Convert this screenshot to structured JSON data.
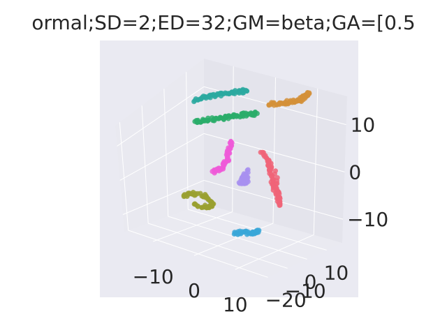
{
  "chart_data": {
    "type": "scatter",
    "title": "ormal;SD=2;ED=32;GM=beta;GA=[0.5",
    "projection": "3d",
    "grid": true,
    "xlim": [
      -17,
      17
    ],
    "ylim": [
      -22,
      18
    ],
    "zlim": [
      -15,
      16
    ],
    "x_ticks": [
      {
        "value": -10,
        "label": "−10"
      },
      {
        "value": 0,
        "label": "0"
      },
      {
        "value": 10,
        "label": "10"
      }
    ],
    "y_ticks": [
      {
        "value": -20,
        "label": "−20"
      },
      {
        "value": -10,
        "label": "−10"
      },
      {
        "value": 0,
        "label": "0"
      },
      {
        "value": 10,
        "label": "10"
      }
    ],
    "z_ticks": [
      {
        "value": -10,
        "label": "−10"
      },
      {
        "value": 0,
        "label": "0"
      },
      {
        "value": 10,
        "label": "10"
      }
    ],
    "colors": {
      "pane_back": "#e4e4ec",
      "pane_side": "#e9e9f0",
      "pane_floor": "#eaeaf1",
      "background": "#eaeaf2",
      "grid": "#ffffff",
      "text": "#262626"
    },
    "series": [
      {
        "color": "#2ca9a0",
        "points": [
          [
            -14,
            8,
            11
          ],
          [
            -12,
            9,
            12
          ],
          [
            -10,
            10,
            12.5
          ],
          [
            -8,
            11,
            13
          ],
          [
            -6,
            12,
            13.5
          ],
          [
            -4,
            12.5,
            14
          ]
        ]
      },
      {
        "color": "#2aad6a",
        "points": [
          [
            -12,
            4,
            8
          ],
          [
            -10,
            5,
            8.5
          ],
          [
            -8,
            6,
            9
          ],
          [
            -6,
            7,
            9.5
          ],
          [
            -4,
            8,
            10
          ],
          [
            -2,
            9,
            10.5
          ],
          [
            0,
            9.5,
            11
          ]
        ]
      },
      {
        "color": "#d4913a",
        "points": [
          [
            1,
            13,
            12
          ],
          [
            3,
            14,
            12.5
          ],
          [
            5,
            15,
            13
          ],
          [
            7,
            15.5,
            13.5
          ],
          [
            8,
            16,
            14.5
          ],
          [
            9,
            16,
            15.5
          ]
        ]
      },
      {
        "color": "#f06478",
        "points": [
          [
            6,
            -1,
            7
          ],
          [
            8,
            -1,
            5
          ],
          [
            9,
            -2,
            3
          ],
          [
            10,
            -3,
            1
          ],
          [
            11,
            -3,
            -1
          ],
          [
            12,
            -4,
            -3
          ],
          [
            10,
            -2,
            4
          ]
        ]
      },
      {
        "color": "#a890f0",
        "points": [
          [
            3,
            -4,
            1
          ],
          [
            4,
            -4,
            2
          ],
          [
            5,
            -5,
            1
          ],
          [
            3,
            -5,
            0
          ],
          [
            4,
            -3,
            3
          ]
        ]
      },
      {
        "color": "#ee5ad8",
        "points": [
          [
            -3,
            3,
            6
          ],
          [
            -3,
            2,
            4
          ],
          [
            -3,
            1,
            2
          ],
          [
            -4,
            0,
            0
          ],
          [
            -6,
            0,
            -1
          ]
        ]
      },
      {
        "color": "#9aa030",
        "points": [
          [
            -12,
            -2,
            -8
          ],
          [
            -10,
            -2,
            -7
          ],
          [
            -7,
            -1,
            -7
          ],
          [
            -5,
            -2,
            -8
          ],
          [
            -6,
            -3,
            -9
          ],
          [
            -9,
            -3,
            -9
          ]
        ]
      },
      {
        "color": "#3aa7d8",
        "points": [
          [
            5,
            -12,
            -10
          ],
          [
            7,
            -11,
            -9
          ],
          [
            9,
            -11,
            -9
          ],
          [
            10,
            -10,
            -8
          ]
        ]
      }
    ]
  }
}
